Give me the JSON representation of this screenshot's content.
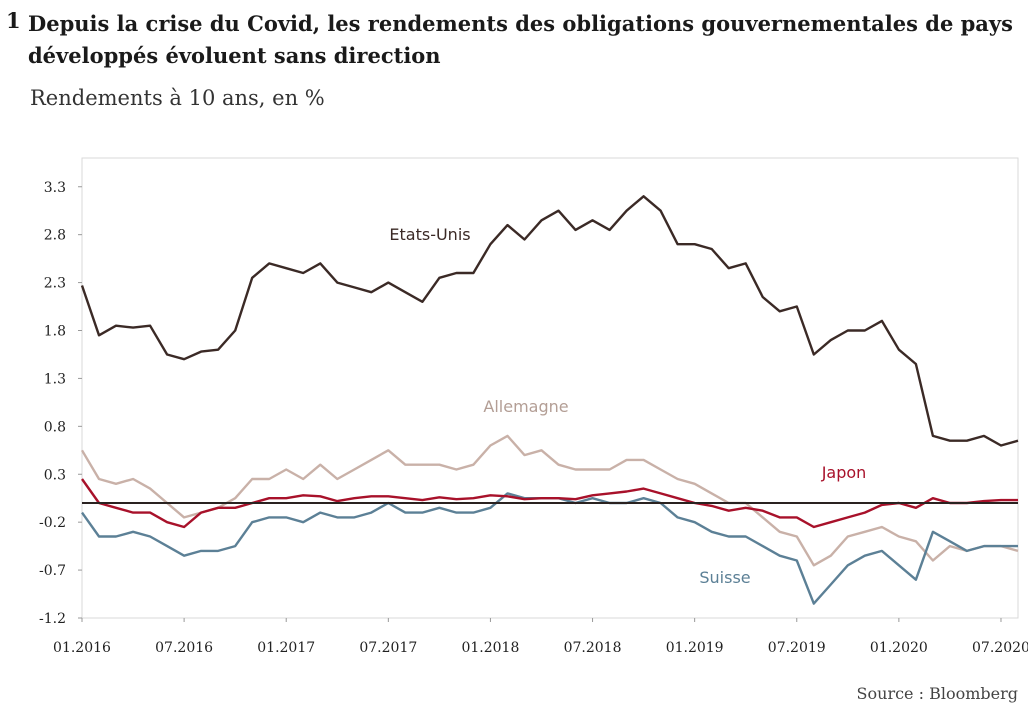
{
  "figure": {
    "number": "1",
    "title": "Depuis la crise du Covid, les rendements des obligations gouvernementales de pays développés évoluent sans direction",
    "subtitle": "Rendements à 10 ans, en %",
    "source": "Source : Bloomberg"
  },
  "chart_data": {
    "type": "line",
    "title": "Depuis la crise du Covid, les rendements des obligations gouvernementales de pays développés évoluent sans direction",
    "subtitle": "Rendements à 10 ans, en %",
    "xlabel": "",
    "ylabel": "",
    "xlim": [
      "2016-01",
      "2020-08"
    ],
    "ylim": [
      -1.2,
      3.6
    ],
    "x_ticks": [
      "01.2016",
      "07.2016",
      "01.2017",
      "07.2017",
      "01.2018",
      "07.2018",
      "01.2019",
      "07.2019",
      "01.2020",
      "07.2020"
    ],
    "y_ticks": [
      "3.3",
      "2.8",
      "2.3",
      "1.8",
      "1.3",
      "0.8",
      "0.3",
      "-0.2",
      "-0.7",
      "-1.2"
    ],
    "grid": false,
    "reference_line_y": 0,
    "series": [
      {
        "name": "Etats-Unis",
        "color": "#3b2a26",
        "points": [
          [
            "2016-01",
            2.27
          ],
          [
            "2016-02",
            1.75
          ],
          [
            "2016-03",
            1.85
          ],
          [
            "2016-04",
            1.83
          ],
          [
            "2016-05",
            1.85
          ],
          [
            "2016-06",
            1.55
          ],
          [
            "2016-07",
            1.5
          ],
          [
            "2016-08",
            1.58
          ],
          [
            "2016-09",
            1.6
          ],
          [
            "2016-10",
            1.8
          ],
          [
            "2016-11",
            2.35
          ],
          [
            "2016-12",
            2.5
          ],
          [
            "2017-01",
            2.45
          ],
          [
            "2017-02",
            2.4
          ],
          [
            "2017-03",
            2.5
          ],
          [
            "2017-04",
            2.3
          ],
          [
            "2017-05",
            2.25
          ],
          [
            "2017-06",
            2.2
          ],
          [
            "2017-07",
            2.3
          ],
          [
            "2017-08",
            2.2
          ],
          [
            "2017-09",
            2.1
          ],
          [
            "2017-10",
            2.35
          ],
          [
            "2017-11",
            2.4
          ],
          [
            "2017-12",
            2.4
          ],
          [
            "2018-01",
            2.7
          ],
          [
            "2018-02",
            2.9
          ],
          [
            "2018-03",
            2.75
          ],
          [
            "2018-04",
            2.95
          ],
          [
            "2018-05",
            3.05
          ],
          [
            "2018-06",
            2.85
          ],
          [
            "2018-07",
            2.95
          ],
          [
            "2018-08",
            2.85
          ],
          [
            "2018-09",
            3.05
          ],
          [
            "2018-10",
            3.2
          ],
          [
            "2018-11",
            3.05
          ],
          [
            "2018-12",
            2.7
          ],
          [
            "2019-01",
            2.7
          ],
          [
            "2019-02",
            2.65
          ],
          [
            "2019-03",
            2.45
          ],
          [
            "2019-04",
            2.5
          ],
          [
            "2019-05",
            2.15
          ],
          [
            "2019-06",
            2.0
          ],
          [
            "2019-07",
            2.05
          ],
          [
            "2019-08",
            1.55
          ],
          [
            "2019-09",
            1.7
          ],
          [
            "2019-10",
            1.8
          ],
          [
            "2019-11",
            1.8
          ],
          [
            "2019-12",
            1.9
          ],
          [
            "2020-01",
            1.6
          ],
          [
            "2020-02",
            1.45
          ],
          [
            "2020-03",
            0.7
          ],
          [
            "2020-04",
            0.65
          ],
          [
            "2020-05",
            0.65
          ],
          [
            "2020-06",
            0.7
          ],
          [
            "2020-07",
            0.6
          ],
          [
            "2020-08",
            0.65
          ]
        ]
      },
      {
        "name": "Allemagne",
        "color": "#c9b1a8",
        "points": [
          [
            "2016-01",
            0.55
          ],
          [
            "2016-02",
            0.25
          ],
          [
            "2016-03",
            0.2
          ],
          [
            "2016-04",
            0.25
          ],
          [
            "2016-05",
            0.15
          ],
          [
            "2016-06",
            0.0
          ],
          [
            "2016-07",
            -0.15
          ],
          [
            "2016-08",
            -0.1
          ],
          [
            "2016-09",
            -0.05
          ],
          [
            "2016-10",
            0.05
          ],
          [
            "2016-11",
            0.25
          ],
          [
            "2016-12",
            0.25
          ],
          [
            "2017-01",
            0.35
          ],
          [
            "2017-02",
            0.25
          ],
          [
            "2017-03",
            0.4
          ],
          [
            "2017-04",
            0.25
          ],
          [
            "2017-05",
            0.35
          ],
          [
            "2017-06",
            0.45
          ],
          [
            "2017-07",
            0.55
          ],
          [
            "2017-08",
            0.4
          ],
          [
            "2017-09",
            0.4
          ],
          [
            "2017-10",
            0.4
          ],
          [
            "2017-11",
            0.35
          ],
          [
            "2017-12",
            0.4
          ],
          [
            "2018-01",
            0.6
          ],
          [
            "2018-02",
            0.7
          ],
          [
            "2018-03",
            0.5
          ],
          [
            "2018-04",
            0.55
          ],
          [
            "2018-05",
            0.4
          ],
          [
            "2018-06",
            0.35
          ],
          [
            "2018-07",
            0.35
          ],
          [
            "2018-08",
            0.35
          ],
          [
            "2018-09",
            0.45
          ],
          [
            "2018-10",
            0.45
          ],
          [
            "2018-11",
            0.35
          ],
          [
            "2018-12",
            0.25
          ],
          [
            "2019-01",
            0.2
          ],
          [
            "2019-02",
            0.1
          ],
          [
            "2019-03",
            0.0
          ],
          [
            "2019-04",
            0.0
          ],
          [
            "2019-05",
            -0.15
          ],
          [
            "2019-06",
            -0.3
          ],
          [
            "2019-07",
            -0.35
          ],
          [
            "2019-08",
            -0.65
          ],
          [
            "2019-09",
            -0.55
          ],
          [
            "2019-10",
            -0.35
          ],
          [
            "2019-11",
            -0.3
          ],
          [
            "2019-12",
            -0.25
          ],
          [
            "2020-01",
            -0.35
          ],
          [
            "2020-02",
            -0.4
          ],
          [
            "2020-03",
            -0.6
          ],
          [
            "2020-04",
            -0.45
          ],
          [
            "2020-05",
            -0.5
          ],
          [
            "2020-06",
            -0.45
          ],
          [
            "2020-07",
            -0.45
          ],
          [
            "2020-08",
            -0.5
          ]
        ]
      },
      {
        "name": "Japon",
        "color": "#a8112a",
        "points": [
          [
            "2016-01",
            0.25
          ],
          [
            "2016-02",
            0.0
          ],
          [
            "2016-03",
            -0.05
          ],
          [
            "2016-04",
            -0.1
          ],
          [
            "2016-05",
            -0.1
          ],
          [
            "2016-06",
            -0.2
          ],
          [
            "2016-07",
            -0.25
          ],
          [
            "2016-08",
            -0.1
          ],
          [
            "2016-09",
            -0.05
          ],
          [
            "2016-10",
            -0.05
          ],
          [
            "2016-11",
            0.0
          ],
          [
            "2016-12",
            0.05
          ],
          [
            "2017-01",
            0.05
          ],
          [
            "2017-02",
            0.08
          ],
          [
            "2017-03",
            0.07
          ],
          [
            "2017-04",
            0.02
          ],
          [
            "2017-05",
            0.05
          ],
          [
            "2017-06",
            0.07
          ],
          [
            "2017-07",
            0.07
          ],
          [
            "2017-08",
            0.05
          ],
          [
            "2017-09",
            0.03
          ],
          [
            "2017-10",
            0.06
          ],
          [
            "2017-11",
            0.04
          ],
          [
            "2017-12",
            0.05
          ],
          [
            "2018-01",
            0.08
          ],
          [
            "2018-02",
            0.07
          ],
          [
            "2018-03",
            0.04
          ],
          [
            "2018-04",
            0.05
          ],
          [
            "2018-05",
            0.05
          ],
          [
            "2018-06",
            0.04
          ],
          [
            "2018-07",
            0.08
          ],
          [
            "2018-08",
            0.1
          ],
          [
            "2018-09",
            0.12
          ],
          [
            "2018-10",
            0.15
          ],
          [
            "2018-11",
            0.1
          ],
          [
            "2018-12",
            0.05
          ],
          [
            "2019-01",
            0.0
          ],
          [
            "2019-02",
            -0.03
          ],
          [
            "2019-03",
            -0.08
          ],
          [
            "2019-04",
            -0.05
          ],
          [
            "2019-05",
            -0.08
          ],
          [
            "2019-06",
            -0.15
          ],
          [
            "2019-07",
            -0.15
          ],
          [
            "2019-08",
            -0.25
          ],
          [
            "2019-09",
            -0.2
          ],
          [
            "2019-10",
            -0.15
          ],
          [
            "2019-11",
            -0.1
          ],
          [
            "2019-12",
            -0.02
          ],
          [
            "2020-01",
            0.0
          ],
          [
            "2020-02",
            -0.05
          ],
          [
            "2020-03",
            0.05
          ],
          [
            "2020-04",
            0.0
          ],
          [
            "2020-05",
            0.0
          ],
          [
            "2020-06",
            0.02
          ],
          [
            "2020-07",
            0.03
          ],
          [
            "2020-08",
            0.03
          ]
        ]
      },
      {
        "name": "Suisse",
        "color": "#5c8096",
        "points": [
          [
            "2016-01",
            -0.1
          ],
          [
            "2016-02",
            -0.35
          ],
          [
            "2016-03",
            -0.35
          ],
          [
            "2016-04",
            -0.3
          ],
          [
            "2016-05",
            -0.35
          ],
          [
            "2016-06",
            -0.45
          ],
          [
            "2016-07",
            -0.55
          ],
          [
            "2016-08",
            -0.5
          ],
          [
            "2016-09",
            -0.5
          ],
          [
            "2016-10",
            -0.45
          ],
          [
            "2016-11",
            -0.2
          ],
          [
            "2016-12",
            -0.15
          ],
          [
            "2017-01",
            -0.15
          ],
          [
            "2017-02",
            -0.2
          ],
          [
            "2017-03",
            -0.1
          ],
          [
            "2017-04",
            -0.15
          ],
          [
            "2017-05",
            -0.15
          ],
          [
            "2017-06",
            -0.1
          ],
          [
            "2017-07",
            0.0
          ],
          [
            "2017-08",
            -0.1
          ],
          [
            "2017-09",
            -0.1
          ],
          [
            "2017-10",
            -0.05
          ],
          [
            "2017-11",
            -0.1
          ],
          [
            "2017-12",
            -0.1
          ],
          [
            "2018-01",
            -0.05
          ],
          [
            "2018-02",
            0.1
          ],
          [
            "2018-03",
            0.05
          ],
          [
            "2018-04",
            0.05
          ],
          [
            "2018-05",
            0.05
          ],
          [
            "2018-06",
            0.0
          ],
          [
            "2018-07",
            0.05
          ],
          [
            "2018-08",
            0.0
          ],
          [
            "2018-09",
            0.0
          ],
          [
            "2018-10",
            0.05
          ],
          [
            "2018-11",
            0.0
          ],
          [
            "2018-12",
            -0.15
          ],
          [
            "2019-01",
            -0.2
          ],
          [
            "2019-02",
            -0.3
          ],
          [
            "2019-03",
            -0.35
          ],
          [
            "2019-04",
            -0.35
          ],
          [
            "2019-05",
            -0.45
          ],
          [
            "2019-06",
            -0.55
          ],
          [
            "2019-07",
            -0.6
          ],
          [
            "2019-08",
            -1.05
          ],
          [
            "2019-09",
            -0.85
          ],
          [
            "2019-10",
            -0.65
          ],
          [
            "2019-11",
            -0.55
          ],
          [
            "2019-12",
            -0.5
          ],
          [
            "2020-01",
            -0.65
          ],
          [
            "2020-02",
            -0.8
          ],
          [
            "2020-03",
            -0.3
          ],
          [
            "2020-04",
            -0.4
          ],
          [
            "2020-05",
            -0.5
          ],
          [
            "2020-06",
            -0.45
          ],
          [
            "2020-07",
            -0.45
          ],
          [
            "2020-08",
            -0.45
          ]
        ]
      }
    ],
    "series_labels": [
      {
        "text": "Etats-Unis",
        "color": "#3b2a26"
      },
      {
        "text": "Allemagne",
        "color": "#b39e95"
      },
      {
        "text": "Japon",
        "color": "#a8112a"
      },
      {
        "text": "Suisse",
        "color": "#5c8096"
      }
    ]
  }
}
